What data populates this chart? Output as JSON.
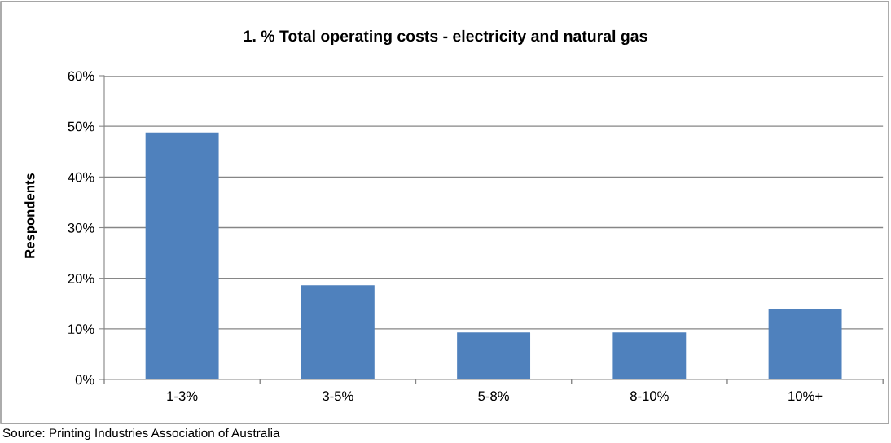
{
  "chart_data": {
    "type": "bar",
    "title": "1. % Total operating costs - electricity and natural gas",
    "ylabel": "Respondents",
    "categories": [
      "1-3%",
      "3-5%",
      "5-8%",
      "8-10%",
      "10%+"
    ],
    "values": [
      48.8,
      18.6,
      9.3,
      9.3,
      14.0
    ],
    "color": "#4f81bd",
    "ylim": [
      0,
      60
    ],
    "yticks": [
      {
        "value": 0,
        "label": "0%"
      },
      {
        "value": 10,
        "label": "10%"
      },
      {
        "value": 20,
        "label": "20%"
      },
      {
        "value": 30,
        "label": "30%"
      },
      {
        "value": 40,
        "label": "40%"
      },
      {
        "value": 50,
        "label": "50%"
      },
      {
        "value": 60,
        "label": "60%"
      }
    ],
    "grid": "y",
    "annotations": [
      "Source: Printing Industries Association of Australia"
    ]
  }
}
